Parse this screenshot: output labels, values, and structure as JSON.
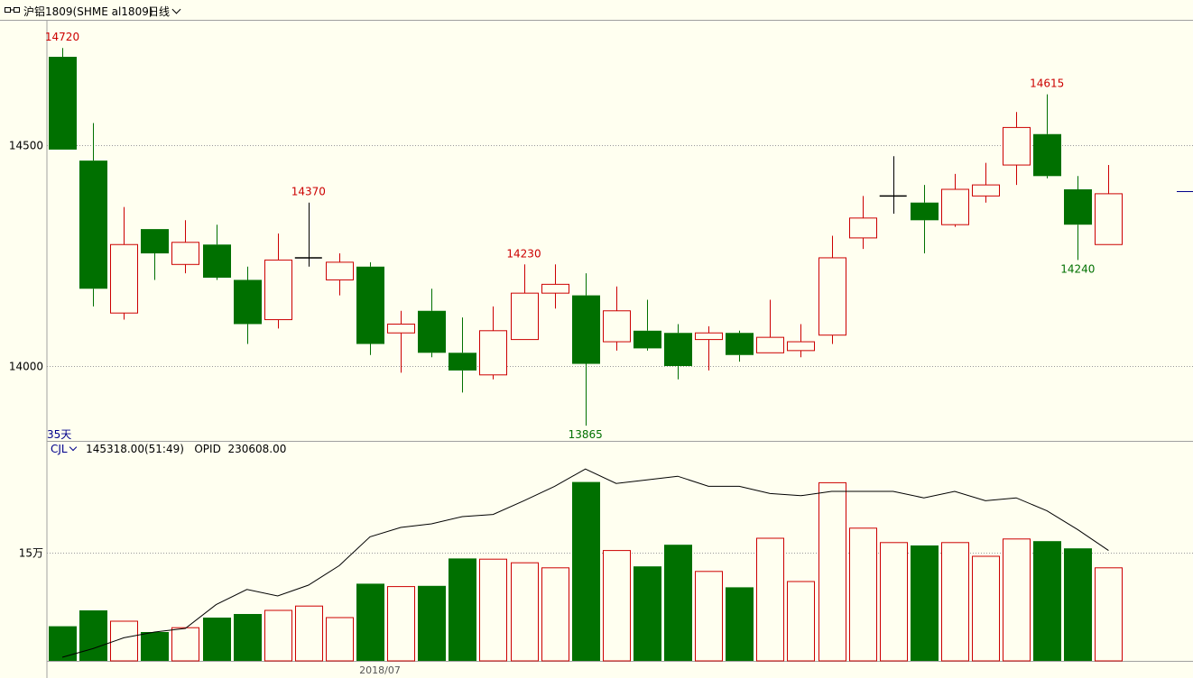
{
  "header": {
    "title": "沪铝1809(SHME al1809)",
    "period": "日线"
  },
  "days_label": "35天",
  "sub_indicator": {
    "name": "CJL",
    "volume_text": "145318.00(51:49)",
    "opid_label": "OPID",
    "opid_value": "230608.00"
  },
  "colors": {
    "up": "#cc0000",
    "down": "#007000",
    "background": "#fffff0",
    "grid": "#999999",
    "label_high": "#cc0000",
    "label_low": "#007000"
  },
  "chart_data": [
    {
      "type": "candlestick",
      "ylim": [
        13830,
        14820
      ],
      "y_ticks": [
        14000,
        14500
      ],
      "grid": true,
      "candles": [
        {
          "o": 14700,
          "h": 14720,
          "l": 14490,
          "c": 14490
        },
        {
          "o": 14465,
          "h": 14550,
          "l": 14135,
          "c": 14175
        },
        {
          "o": 14120,
          "h": 14360,
          "l": 14105,
          "c": 14275
        },
        {
          "o": 14310,
          "h": 14310,
          "l": 14195,
          "c": 14255
        },
        {
          "o": 14230,
          "h": 14330,
          "l": 14210,
          "c": 14280
        },
        {
          "o": 14275,
          "h": 14320,
          "l": 14195,
          "c": 14200
        },
        {
          "o": 14195,
          "h": 14225,
          "l": 14050,
          "c": 14095
        },
        {
          "o": 14105,
          "h": 14300,
          "l": 14085,
          "c": 14240
        },
        {
          "o": 14245,
          "h": 14370,
          "l": 14225,
          "c": 14245
        },
        {
          "o": 14195,
          "h": 14255,
          "l": 14160,
          "c": 14235
        },
        {
          "o": 14225,
          "h": 14235,
          "l": 14025,
          "c": 14050
        },
        {
          "o": 14075,
          "h": 14125,
          "l": 13985,
          "c": 14095
        },
        {
          "o": 14125,
          "h": 14175,
          "l": 14020,
          "c": 14030
        },
        {
          "o": 14030,
          "h": 14110,
          "l": 13940,
          "c": 13990
        },
        {
          "o": 13980,
          "h": 14135,
          "l": 13970,
          "c": 14080
        },
        {
          "o": 14060,
          "h": 14230,
          "l": 14060,
          "c": 14165
        },
        {
          "o": 14165,
          "h": 14230,
          "l": 14130,
          "c": 14185
        },
        {
          "o": 14160,
          "h": 14210,
          "l": 13865,
          "c": 14005
        },
        {
          "o": 14055,
          "h": 14180,
          "l": 14035,
          "c": 14125
        },
        {
          "o": 14080,
          "h": 14150,
          "l": 14035,
          "c": 14040
        },
        {
          "o": 14075,
          "h": 14095,
          "l": 13970,
          "c": 14000
        },
        {
          "o": 14060,
          "h": 14090,
          "l": 13990,
          "c": 14075
        },
        {
          "o": 14075,
          "h": 14080,
          "l": 14010,
          "c": 14025
        },
        {
          "o": 14030,
          "h": 14150,
          "l": 14030,
          "c": 14065
        },
        {
          "o": 14035,
          "h": 14095,
          "l": 14020,
          "c": 14055
        },
        {
          "o": 14070,
          "h": 14295,
          "l": 14050,
          "c": 14245
        },
        {
          "o": 14290,
          "h": 14385,
          "l": 14265,
          "c": 14335
        },
        {
          "o": 14385,
          "h": 14475,
          "l": 14345,
          "c": 14385
        },
        {
          "o": 14370,
          "h": 14410,
          "l": 14255,
          "c": 14330
        },
        {
          "o": 14320,
          "h": 14435,
          "l": 14315,
          "c": 14400
        },
        {
          "o": 14385,
          "h": 14460,
          "l": 14370,
          "c": 14410
        },
        {
          "o": 14455,
          "h": 14575,
          "l": 14410,
          "c": 14540
        },
        {
          "o": 14525,
          "h": 14615,
          "l": 14425,
          "c": 14430
        },
        {
          "o": 14400,
          "h": 14430,
          "l": 14240,
          "c": 14320
        },
        {
          "o": 14275,
          "h": 14455,
          "l": 14275,
          "c": 14390
        }
      ],
      "annotations": [
        {
          "index": 0,
          "kind": "high",
          "text": "14720"
        },
        {
          "index": 8,
          "kind": "high",
          "text": "14370"
        },
        {
          "index": 15,
          "kind": "high",
          "text": "14230"
        },
        {
          "index": 17,
          "kind": "low",
          "text": "13865"
        },
        {
          "index": 32,
          "kind": "high",
          "text": "14615"
        },
        {
          "index": 33,
          "kind": "low",
          "text": "14240"
        }
      ]
    },
    {
      "type": "bar",
      "title": "CJL",
      "y_ticks": [
        150000
      ],
      "y_tick_labels": [
        "15万"
      ],
      "x_tick_labels": [
        {
          "index": 10,
          "text": "2018/07"
        }
      ],
      "ylim": [
        0,
        276000
      ],
      "volumes": [
        48000,
        70000,
        55000,
        40000,
        46000,
        60000,
        65000,
        70000,
        76000,
        60000,
        107000,
        103000,
        104000,
        142000,
        141000,
        136000,
        129000,
        248000,
        153000,
        131000,
        161000,
        124000,
        102000,
        170000,
        110000,
        247000,
        184000,
        164000,
        160000,
        164000,
        145000,
        169000,
        166000,
        156000,
        129000
      ],
      "volume_ma": [
        5000,
        17000,
        32000,
        40000,
        45000,
        78000,
        99000,
        90000,
        105000,
        132000,
        172000,
        185000,
        190000,
        200000,
        203000,
        222000,
        242000,
        266000,
        246000,
        251000,
        256000,
        242000,
        242000,
        232000,
        229000,
        235000,
        235000,
        235000,
        226000,
        235000,
        222000,
        226000,
        208000,
        182000,
        153000
      ]
    }
  ]
}
